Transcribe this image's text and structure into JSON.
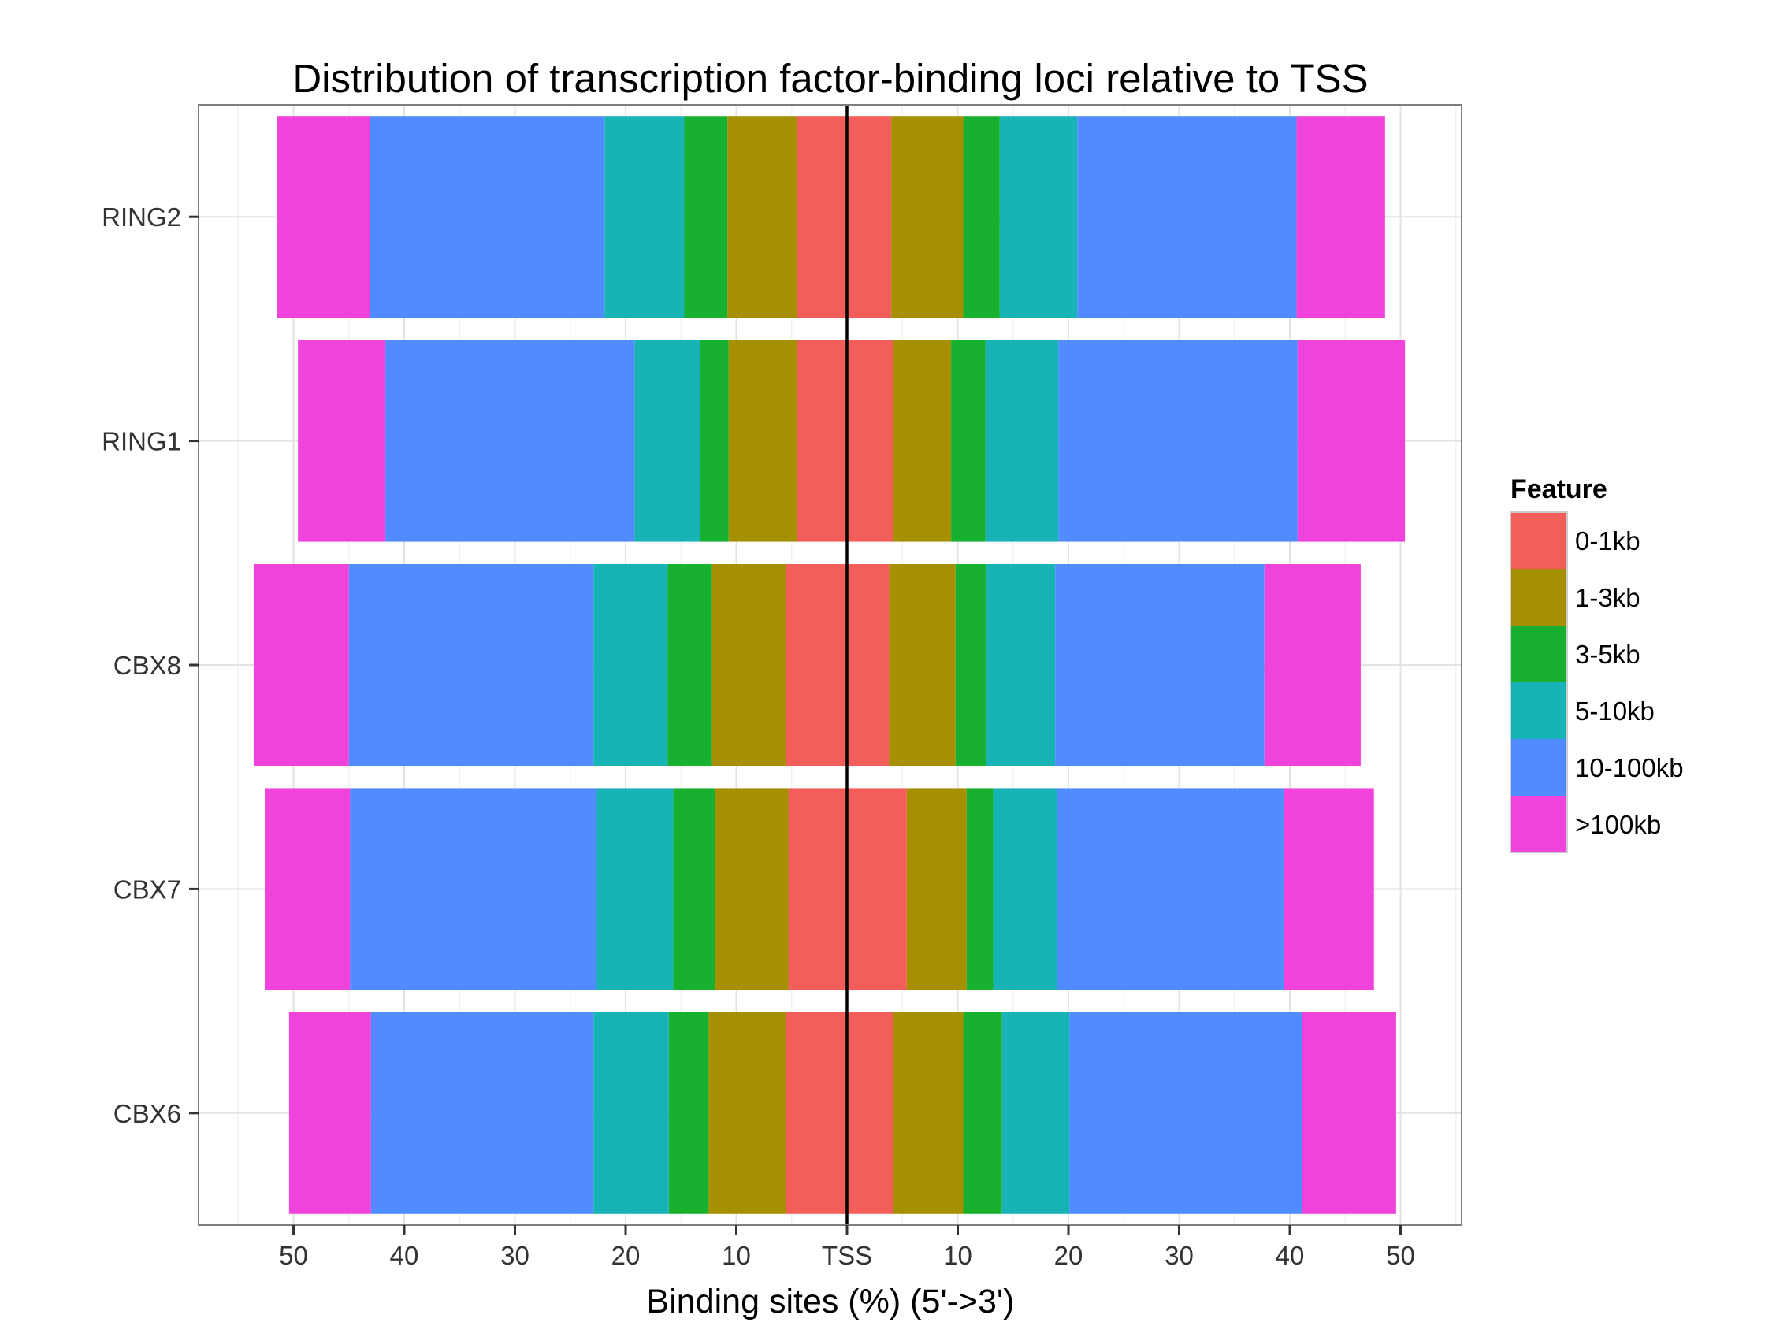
{
  "chart_data": {
    "type": "bar",
    "orientation": "horizontal",
    "stacked": true,
    "diverging": true,
    "title": "Distribution of transcription factor-binding loci relative to TSS",
    "xlabel": "Binding sites (%) (5'->3')",
    "ylabel": "",
    "xlim": [
      -57,
      57
    ],
    "x_ticks": [
      -50,
      -40,
      -30,
      -20,
      -10,
      0,
      10,
      20,
      30,
      40,
      50
    ],
    "x_tick_labels": [
      "50",
      "40",
      "30",
      "20",
      "10",
      "TSS",
      "10",
      "20",
      "30",
      "40",
      "50"
    ],
    "grid": true,
    "center_line": "TSS",
    "categories": [
      "RING2",
      "RING1",
      "CBX8",
      "CBX7",
      "CBX6"
    ],
    "legend": {
      "title": "Feature",
      "position": "right"
    },
    "series": [
      {
        "name": "0-1kb",
        "color": "#F35E5A",
        "upstream": [
          4.5,
          4.5,
          5.5,
          5.3,
          5.5
        ],
        "downstream": [
          4.0,
          4.2,
          3.8,
          5.4,
          4.2
        ]
      },
      {
        "name": "1-3kb",
        "color": "#A68F00",
        "upstream": [
          6.3,
          6.2,
          6.7,
          6.6,
          7.0
        ],
        "downstream": [
          6.5,
          5.2,
          6.0,
          5.4,
          6.3
        ]
      },
      {
        "name": "3-5kb",
        "color": "#18B12F",
        "upstream": [
          3.9,
          2.6,
          4.0,
          3.8,
          3.6
        ],
        "downstream": [
          3.3,
          3.1,
          2.8,
          2.4,
          3.5
        ]
      },
      {
        "name": "5-10kb",
        "color": "#17B3B7",
        "upstream": [
          7.2,
          5.9,
          6.7,
          6.9,
          6.8
        ],
        "downstream": [
          7.0,
          6.6,
          6.2,
          5.8,
          6.1
        ]
      },
      {
        "name": "10-100kb",
        "color": "#508CFF",
        "upstream": [
          21.2,
          22.5,
          22.1,
          22.3,
          20.1
        ],
        "downstream": [
          19.8,
          21.6,
          18.9,
          20.5,
          21.0
        ]
      },
      {
        "name": ">100kb",
        "color": "#F043DB",
        "upstream": [
          8.4,
          7.9,
          8.6,
          7.7,
          7.4
        ],
        "downstream": [
          8.0,
          9.7,
          8.7,
          8.1,
          8.5
        ]
      }
    ]
  }
}
